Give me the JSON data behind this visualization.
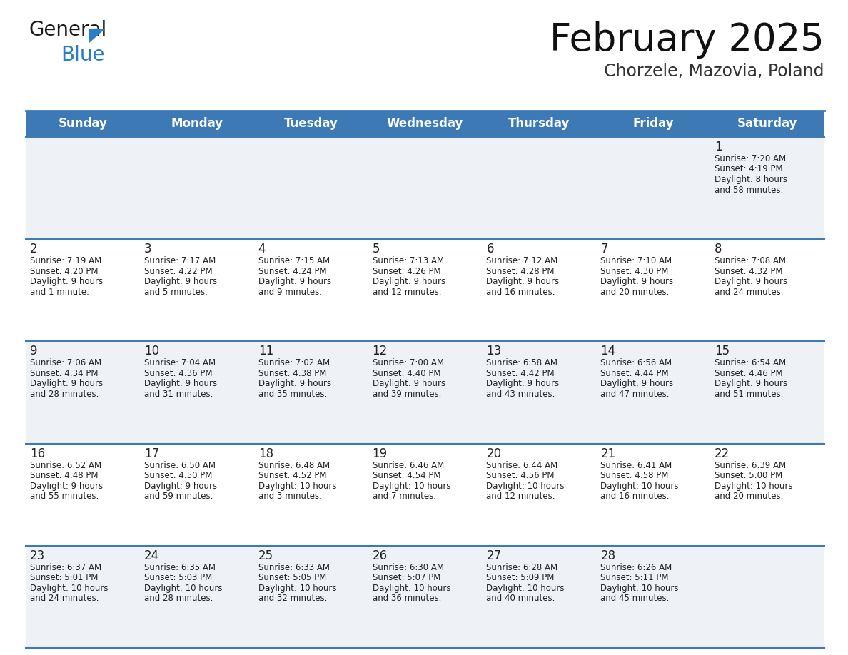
{
  "title": "February 2025",
  "subtitle": "Chorzele, Mazovia, Poland",
  "header_bg": "#3d7ab5",
  "header_text_color": "#ffffff",
  "days_of_week": [
    "Sunday",
    "Monday",
    "Tuesday",
    "Wednesday",
    "Thursday",
    "Friday",
    "Saturday"
  ],
  "row_bg_even": "#eef2f7",
  "row_bg_odd": "#ffffff",
  "cell_border_color": "#3d7ab5",
  "day_number_color": "#222222",
  "info_text_color": "#222222",
  "calendar": [
    [
      null,
      null,
      null,
      null,
      null,
      null,
      1
    ],
    [
      2,
      3,
      4,
      5,
      6,
      7,
      8
    ],
    [
      9,
      10,
      11,
      12,
      13,
      14,
      15
    ],
    [
      16,
      17,
      18,
      19,
      20,
      21,
      22
    ],
    [
      23,
      24,
      25,
      26,
      27,
      28,
      null
    ]
  ],
  "cell_data": {
    "1": {
      "sunrise": "7:20 AM",
      "sunset": "4:19 PM",
      "daylight": "8 hours",
      "daylight2": "and 58 minutes."
    },
    "2": {
      "sunrise": "7:19 AM",
      "sunset": "4:20 PM",
      "daylight": "9 hours",
      "daylight2": "and 1 minute."
    },
    "3": {
      "sunrise": "7:17 AM",
      "sunset": "4:22 PM",
      "daylight": "9 hours",
      "daylight2": "and 5 minutes."
    },
    "4": {
      "sunrise": "7:15 AM",
      "sunset": "4:24 PM",
      "daylight": "9 hours",
      "daylight2": "and 9 minutes."
    },
    "5": {
      "sunrise": "7:13 AM",
      "sunset": "4:26 PM",
      "daylight": "9 hours",
      "daylight2": "and 12 minutes."
    },
    "6": {
      "sunrise": "7:12 AM",
      "sunset": "4:28 PM",
      "daylight": "9 hours",
      "daylight2": "and 16 minutes."
    },
    "7": {
      "sunrise": "7:10 AM",
      "sunset": "4:30 PM",
      "daylight": "9 hours",
      "daylight2": "and 20 minutes."
    },
    "8": {
      "sunrise": "7:08 AM",
      "sunset": "4:32 PM",
      "daylight": "9 hours",
      "daylight2": "and 24 minutes."
    },
    "9": {
      "sunrise": "7:06 AM",
      "sunset": "4:34 PM",
      "daylight": "9 hours",
      "daylight2": "and 28 minutes."
    },
    "10": {
      "sunrise": "7:04 AM",
      "sunset": "4:36 PM",
      "daylight": "9 hours",
      "daylight2": "and 31 minutes."
    },
    "11": {
      "sunrise": "7:02 AM",
      "sunset": "4:38 PM",
      "daylight": "9 hours",
      "daylight2": "and 35 minutes."
    },
    "12": {
      "sunrise": "7:00 AM",
      "sunset": "4:40 PM",
      "daylight": "9 hours",
      "daylight2": "and 39 minutes."
    },
    "13": {
      "sunrise": "6:58 AM",
      "sunset": "4:42 PM",
      "daylight": "9 hours",
      "daylight2": "and 43 minutes."
    },
    "14": {
      "sunrise": "6:56 AM",
      "sunset": "4:44 PM",
      "daylight": "9 hours",
      "daylight2": "and 47 minutes."
    },
    "15": {
      "sunrise": "6:54 AM",
      "sunset": "4:46 PM",
      "daylight": "9 hours",
      "daylight2": "and 51 minutes."
    },
    "16": {
      "sunrise": "6:52 AM",
      "sunset": "4:48 PM",
      "daylight": "9 hours",
      "daylight2": "and 55 minutes."
    },
    "17": {
      "sunrise": "6:50 AM",
      "sunset": "4:50 PM",
      "daylight": "9 hours",
      "daylight2": "and 59 minutes."
    },
    "18": {
      "sunrise": "6:48 AM",
      "sunset": "4:52 PM",
      "daylight": "10 hours",
      "daylight2": "and 3 minutes."
    },
    "19": {
      "sunrise": "6:46 AM",
      "sunset": "4:54 PM",
      "daylight": "10 hours",
      "daylight2": "and 7 minutes."
    },
    "20": {
      "sunrise": "6:44 AM",
      "sunset": "4:56 PM",
      "daylight": "10 hours",
      "daylight2": "and 12 minutes."
    },
    "21": {
      "sunrise": "6:41 AM",
      "sunset": "4:58 PM",
      "daylight": "10 hours",
      "daylight2": "and 16 minutes."
    },
    "22": {
      "sunrise": "6:39 AM",
      "sunset": "5:00 PM",
      "daylight": "10 hours",
      "daylight2": "and 20 minutes."
    },
    "23": {
      "sunrise": "6:37 AM",
      "sunset": "5:01 PM",
      "daylight": "10 hours",
      "daylight2": "and 24 minutes."
    },
    "24": {
      "sunrise": "6:35 AM",
      "sunset": "5:03 PM",
      "daylight": "10 hours",
      "daylight2": "and 28 minutes."
    },
    "25": {
      "sunrise": "6:33 AM",
      "sunset": "5:05 PM",
      "daylight": "10 hours",
      "daylight2": "and 32 minutes."
    },
    "26": {
      "sunrise": "6:30 AM",
      "sunset": "5:07 PM",
      "daylight": "10 hours",
      "daylight2": "and 36 minutes."
    },
    "27": {
      "sunrise": "6:28 AM",
      "sunset": "5:09 PM",
      "daylight": "10 hours",
      "daylight2": "and 40 minutes."
    },
    "28": {
      "sunrise": "6:26 AM",
      "sunset": "5:11 PM",
      "daylight": "10 hours",
      "daylight2": "and 45 minutes."
    }
  },
  "logo_color_general": "#1a1a1a",
  "logo_color_blue": "#2a7dc9",
  "logo_triangle_color": "#2a7dc9"
}
